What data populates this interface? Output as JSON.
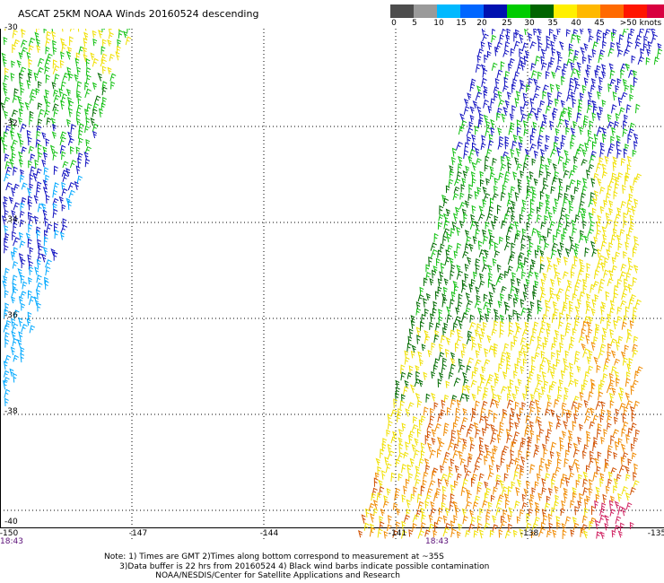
{
  "title": "ASCAT 25KM NOAA Winds 20160524 descending",
  "legend": {
    "labels": [
      "0",
      "5",
      "10",
      "15",
      "20",
      "25",
      "30",
      "35",
      "40",
      "45",
      ">50 knots"
    ],
    "colors": [
      "#4d4d4d",
      "#9a9a9a",
      "#00b9ff",
      "#0066ff",
      "#0011b0",
      "#00cc00",
      "#006400",
      "#fff000",
      "#ffb800",
      "#ff6a00",
      "#ff1500",
      "#d80040",
      "#8f0cb8"
    ]
  },
  "map": {
    "lat_labels": [
      "-30",
      "-32",
      "-34",
      "-36",
      "-38",
      "-40"
    ],
    "lon_labels": [
      "-150",
      "-147",
      "-144",
      "-141",
      "-138",
      "-135"
    ],
    "time_labels": [
      "18:43",
      "18:43"
    ],
    "barb_colors": {
      "yellow": "#f0e000",
      "green": "#10c010",
      "dkgreen": "#006a00",
      "blue": "#1010c0",
      "cyan": "#00a8ff",
      "orange": "#f08a00",
      "dorange": "#d05000",
      "red": "#d02060"
    }
  },
  "notes": [
    "Note: 1) Times are GMT 2)Times along bottom correspond to measurement at ~35S",
    "      3)Data buffer is 22 hrs from 20160524 4) Black wind barbs indicate possible contamination",
    "                    NOAA/NESDIS/Center for Satellite Applications and Research"
  ]
}
